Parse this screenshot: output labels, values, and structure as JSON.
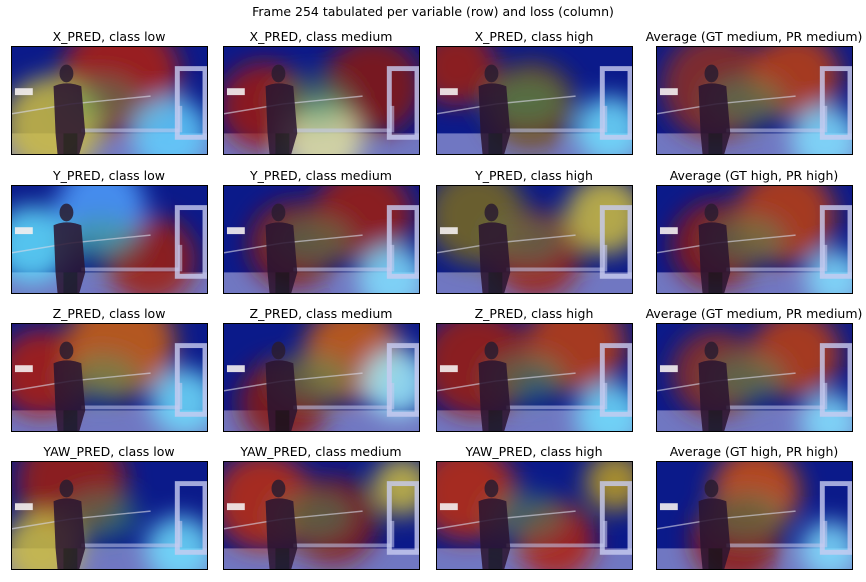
{
  "figure": {
    "title": "Frame 254 tabulated per variable (row) and loss (column)",
    "cells": [
      {
        "title": "X_PRED, class low"
      },
      {
        "title": "X_PRED, class medium"
      },
      {
        "title": "X_PRED, class high"
      },
      {
        "title": "Average (GT medium, PR medium)"
      },
      {
        "title": "Y_PRED, class low"
      },
      {
        "title": "Y_PRED, class medium"
      },
      {
        "title": "Y_PRED, class high"
      },
      {
        "title": "Average (GT high, PR high)"
      },
      {
        "title": "Z_PRED, class low"
      },
      {
        "title": "Z_PRED, class medium"
      },
      {
        "title": "Z_PRED, class high"
      },
      {
        "title": "Average (GT medium, PR medium)"
      },
      {
        "title": "YAW_PRED, class low"
      },
      {
        "title": "YAW_PRED, class medium"
      },
      {
        "title": "YAW_PRED, class high"
      },
      {
        "title": "Average (GT high, PR high)"
      }
    ]
  },
  "colors": {
    "jet_low": "#0b1a8a",
    "jet_mid": "#3fa36a",
    "jet_high": "#9a1e10",
    "scene_bg": "#2a2e6a"
  }
}
